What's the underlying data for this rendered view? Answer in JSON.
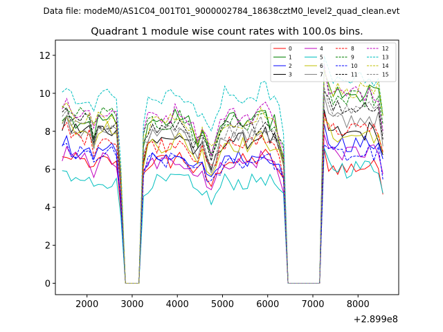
{
  "chart_data": {
    "type": "line",
    "suptitle": "Data file: modeM0/AS1C04_001T01_9000002784_18638cztM0_level2_quad_clean.evt",
    "title": "Quadrant 1 module wise count rates with 100.0s bins.",
    "xlabel": "",
    "ylabel": "",
    "x_offset_label": "+2.899e8",
    "xlim": [
      1300,
      8900
    ],
    "ylim": [
      -0.6,
      12.8
    ],
    "xticks": [
      2000,
      3000,
      4000,
      5000,
      6000,
      7000,
      8000
    ],
    "yticks": [
      0,
      2,
      4,
      6,
      8,
      10,
      12
    ],
    "legend_position": "top-right",
    "segments": [
      {
        "x_start": 1450,
        "x_end": 2750
      },
      {
        "x_start": 3250,
        "x_end": 6350
      },
      {
        "x_start": 7250,
        "x_end": 8550
      }
    ],
    "gap_ranges": [
      [
        2850,
        3150
      ],
      [
        6450,
        7150
      ]
    ],
    "series": [
      {
        "name": "0",
        "color": "#ff0000",
        "dash": "solid",
        "levels": [
          6.4,
          6.4,
          6.1
        ]
      },
      {
        "name": "1",
        "color": "#008000",
        "dash": "solid",
        "levels": [
          8.6,
          8.5,
          10.0
        ]
      },
      {
        "name": "2",
        "color": "#0000ff",
        "dash": "solid",
        "levels": [
          7.0,
          6.6,
          7.3
        ]
      },
      {
        "name": "3",
        "color": "#000000",
        "dash": "solid",
        "levels": [
          8.1,
          7.5,
          7.9
        ]
      },
      {
        "name": "4",
        "color": "#bf00bf",
        "dash": "solid",
        "levels": [
          6.5,
          6.3,
          6.9
        ]
      },
      {
        "name": "5",
        "color": "#00bfbf",
        "dash": "solid",
        "levels": [
          5.4,
          5.3,
          6.1
        ]
      },
      {
        "name": "6",
        "color": "#bfbf00",
        "dash": "solid",
        "levels": [
          8.2,
          7.3,
          7.8
        ]
      },
      {
        "name": "7",
        "color": "#808080",
        "dash": "solid",
        "levels": [
          8.0,
          7.7,
          8.6
        ]
      },
      {
        "name": "8",
        "color": "#ff0000",
        "dash": "dashed",
        "levels": [
          7.7,
          7.3,
          8.1
        ]
      },
      {
        "name": "9",
        "color": "#008000",
        "dash": "dashed",
        "levels": [
          8.9,
          8.4,
          9.7
        ]
      },
      {
        "name": "10",
        "color": "#0000ff",
        "dash": "dashed",
        "levels": [
          6.8,
          6.4,
          6.8
        ]
      },
      {
        "name": "11",
        "color": "#000000",
        "dash": "dashed",
        "levels": [
          8.5,
          8.1,
          9.3
        ]
      },
      {
        "name": "12",
        "color": "#bf00bf",
        "dash": "dashed",
        "levels": [
          9.0,
          8.8,
          10.0
        ]
      },
      {
        "name": "13",
        "color": "#00bfbf",
        "dash": "dashed",
        "levels": [
          9.9,
          9.8,
          10.8
        ]
      },
      {
        "name": "14",
        "color": "#bfbf00",
        "dash": "dashed",
        "levels": [
          8.7,
          8.5,
          10.2
        ]
      },
      {
        "name": "15",
        "color": "#808080",
        "dash": "dashed",
        "levels": [
          8.2,
          7.9,
          9.2
        ]
      }
    ]
  }
}
